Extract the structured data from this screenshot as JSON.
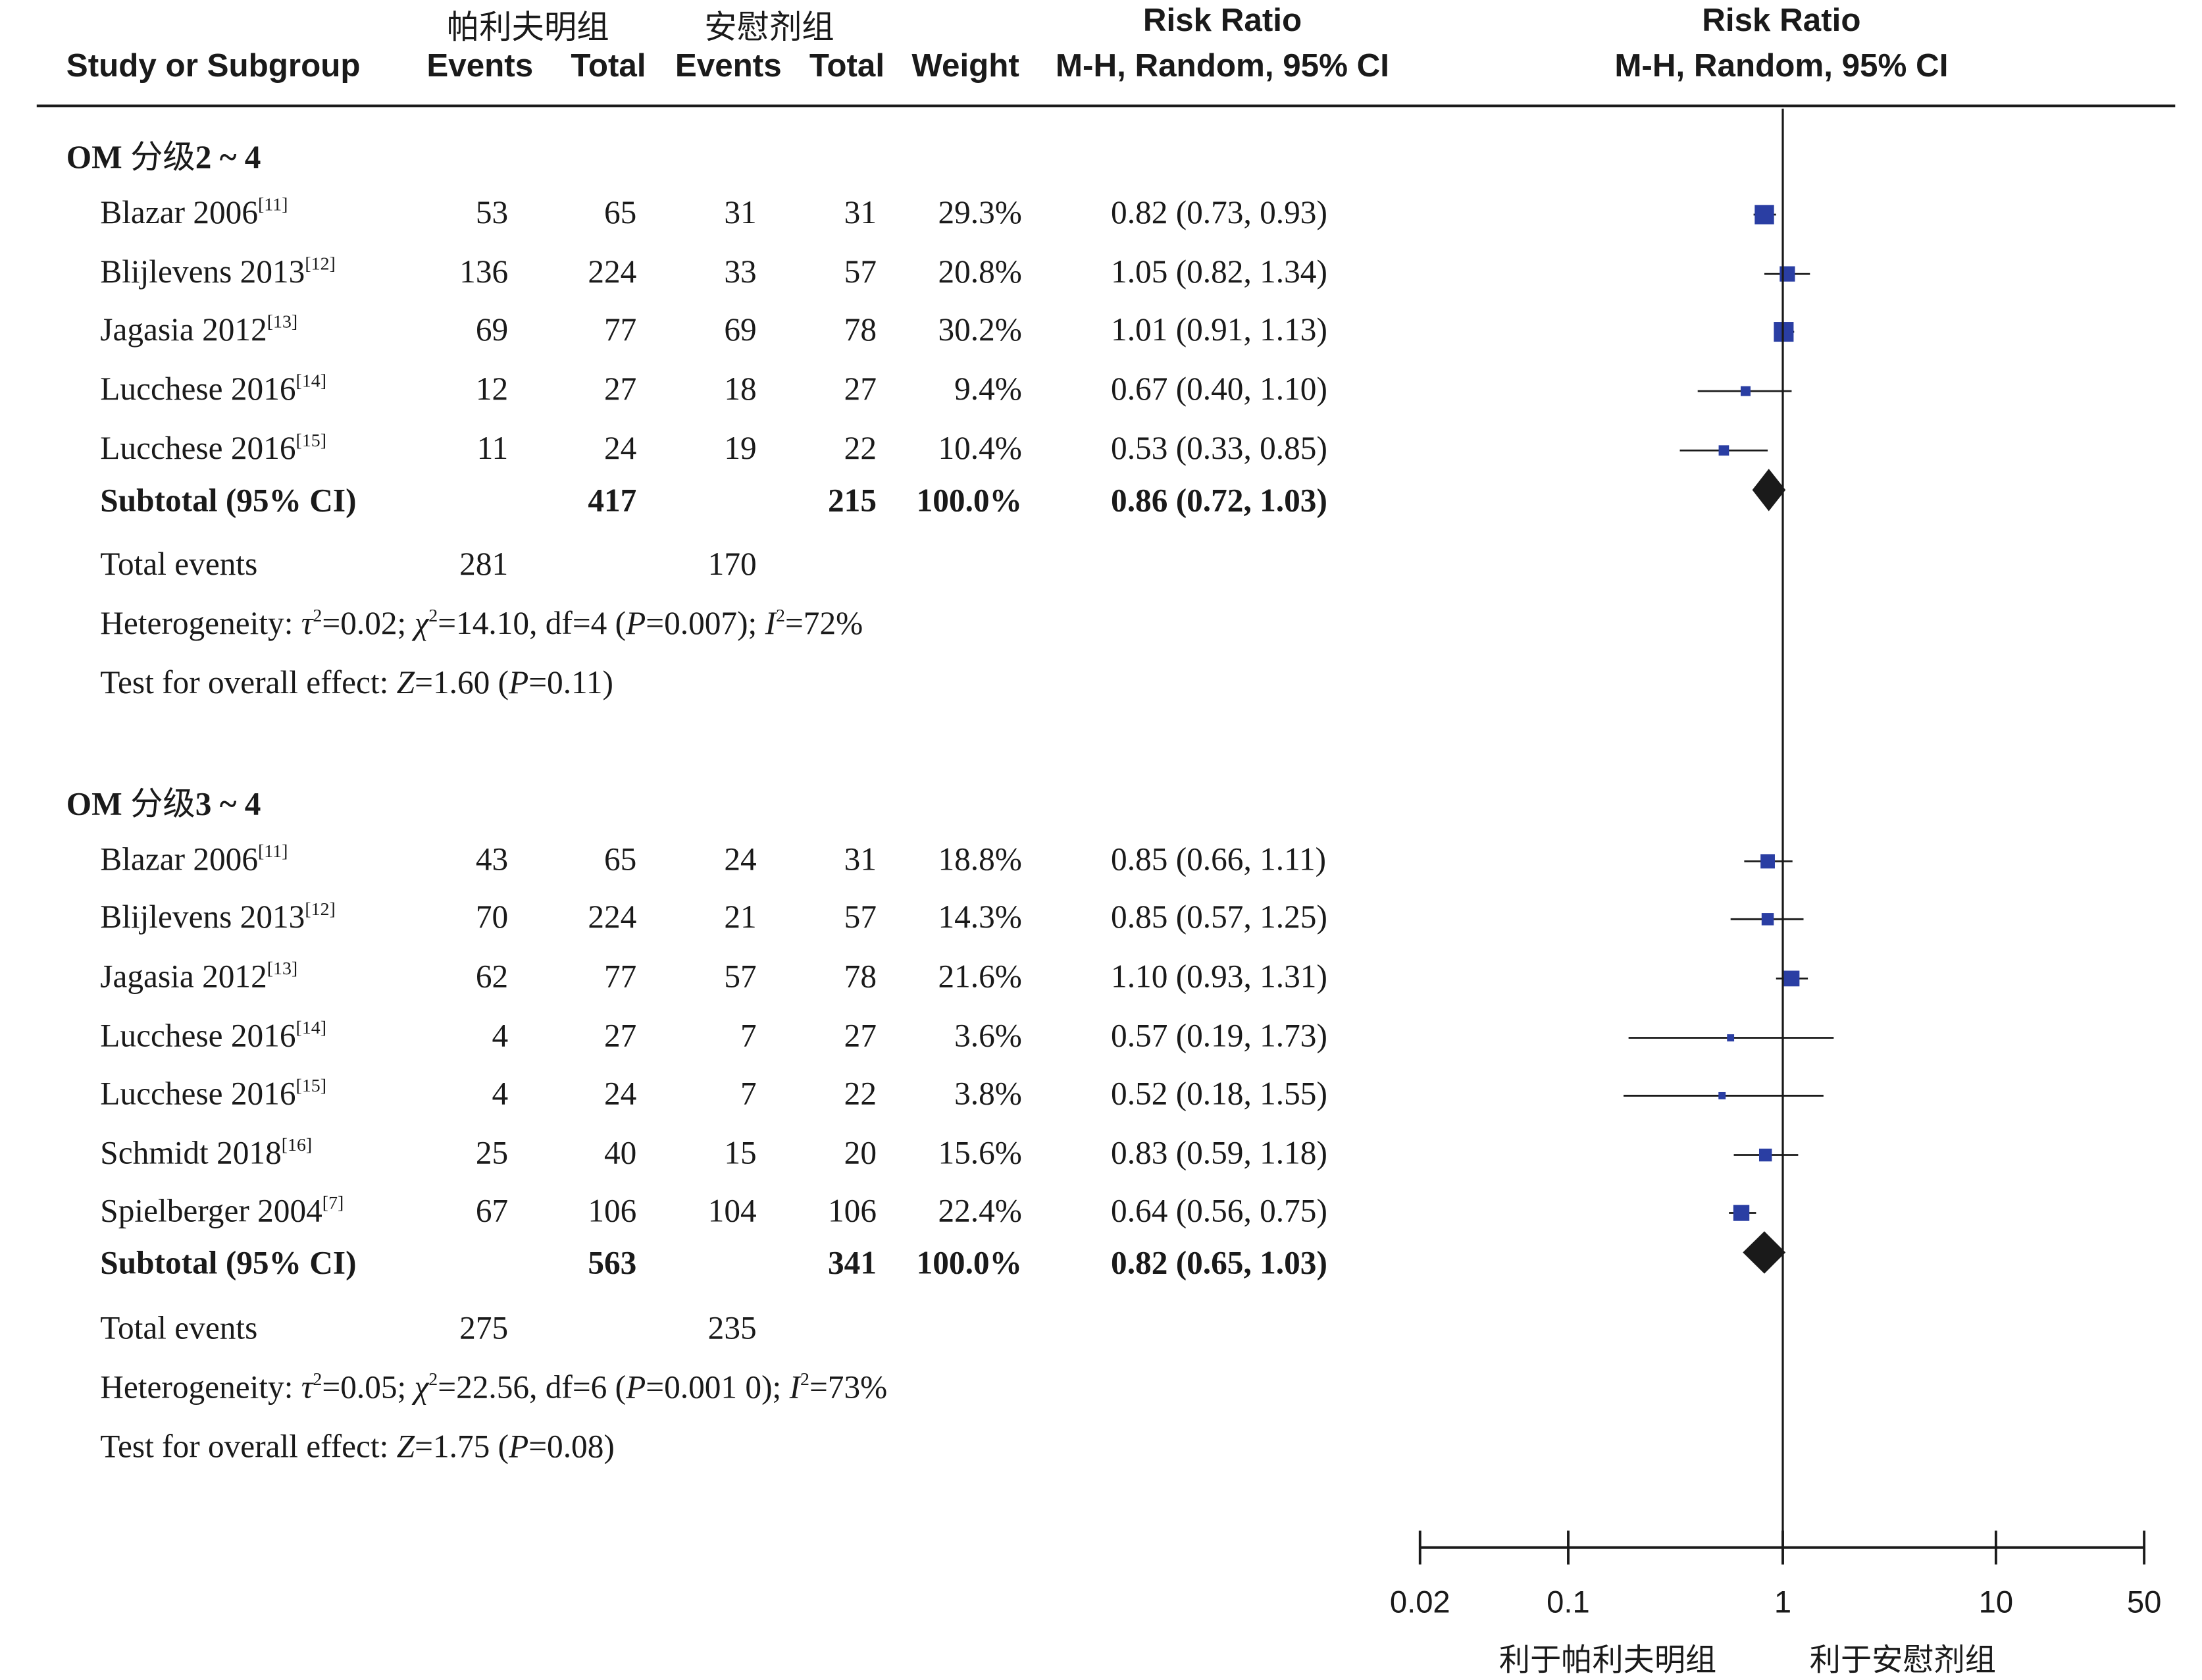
{
  "headers": {
    "study": "Study or Subgroup",
    "treatment_group": "帕利夫明组",
    "control_group": "安慰剂组",
    "events": "Events",
    "total": "Total",
    "weight": "Weight",
    "rr": "Risk Ratio",
    "method": "M-H, Random, 95% CI"
  },
  "chart_data": {
    "type": "forest",
    "x_scale": "log",
    "x_ticks": [
      "0.02",
      "0.1",
      "1",
      "10",
      "50"
    ],
    "favors_left": "利于帕利夫明组",
    "favors_right": "利于安慰剂组",
    "marker_color": "#2a3ea3",
    "diamond_color": "#1a1a1a",
    "groups": [
      {
        "title_latin": "OM ",
        "title_cn": "分级",
        "title_range": "2 ~ 4",
        "studies": [
          {
            "name": "Blazar 2006",
            "ref": "[11]",
            "ev_t": "53",
            "tot_t": "65",
            "ev_c": "31",
            "tot_c": "31",
            "weight": "29.3%",
            "ci_text": "0.82 (0.73, 0.93)",
            "rr": 0.82,
            "lo": 0.73,
            "hi": 0.93,
            "w": 29.3
          },
          {
            "name": "Blijlevens 2013",
            "ref": "[12]",
            "ev_t": "136",
            "tot_t": "224",
            "ev_c": "33",
            "tot_c": "57",
            "weight": "20.8%",
            "ci_text": "1.05 (0.82, 1.34)",
            "rr": 1.05,
            "lo": 0.82,
            "hi": 1.34,
            "w": 20.8
          },
          {
            "name": "Jagasia 2012",
            "ref": "[13]",
            "ev_t": "69",
            "tot_t": "77",
            "ev_c": "69",
            "tot_c": "78",
            "weight": "30.2%",
            "ci_text": "1.01 (0.91, 1.13)",
            "rr": 1.01,
            "lo": 0.91,
            "hi": 1.13,
            "w": 30.2
          },
          {
            "name": "Lucchese 2016",
            "ref": "[14]",
            "ev_t": "12",
            "tot_t": "27",
            "ev_c": "18",
            "tot_c": "27",
            "weight": "9.4%",
            "ci_text": "0.67 (0.40, 1.10)",
            "rr": 0.67,
            "lo": 0.4,
            "hi": 1.1,
            "w": 9.4
          },
          {
            "name": "Lucchese 2016",
            "ref": "[15]",
            "ev_t": "11",
            "tot_t": "24",
            "ev_c": "19",
            "tot_c": "22",
            "weight": "10.4%",
            "ci_text": "0.53 (0.33, 0.85)",
            "rr": 0.53,
            "lo": 0.33,
            "hi": 0.85,
            "w": 10.4
          }
        ],
        "subtotal": {
          "label": "Subtotal (95% CI)",
          "tot_t": "417",
          "tot_c": "215",
          "weight": "100.0%",
          "ci_text": "0.86 (0.72, 1.03)",
          "rr": 0.86,
          "lo": 0.72,
          "hi": 1.03
        },
        "total_events": {
          "label": "Total events",
          "t": "281",
          "c": "170"
        },
        "heterogeneity": {
          "label": "Heterogeneity: ",
          "tau2": "=0.02; ",
          "chi2": "=14.10, df=4 (",
          "p": "=0.007); ",
          "i2": "=72%"
        },
        "overall": {
          "label": "Test for overall effect: ",
          "z": "=1.60 (",
          "p": "=0.11)"
        }
      },
      {
        "title_latin": "OM ",
        "title_cn": "分级",
        "title_range": "3 ~ 4",
        "studies": [
          {
            "name": "Blazar 2006",
            "ref": "[11]",
            "ev_t": "43",
            "tot_t": "65",
            "ev_c": "24",
            "tot_c": "31",
            "weight": "18.8%",
            "ci_text": "0.85 (0.66, 1.11)",
            "rr": 0.85,
            "lo": 0.66,
            "hi": 1.11,
            "w": 18.8
          },
          {
            "name": "Blijlevens 2013",
            "ref": "[12]",
            "ev_t": "70",
            "tot_t": "224",
            "ev_c": "21",
            "tot_c": "57",
            "weight": "14.3%",
            "ci_text": "0.85 (0.57, 1.25)",
            "rr": 0.85,
            "lo": 0.57,
            "hi": 1.25,
            "w": 14.3
          },
          {
            "name": "Jagasia 2012",
            "ref": "[13]",
            "ev_t": "62",
            "tot_t": "77",
            "ev_c": "57",
            "tot_c": "78",
            "weight": "21.6%",
            "ci_text": "1.10 (0.93, 1.31)",
            "rr": 1.1,
            "lo": 0.93,
            "hi": 1.31,
            "w": 21.6
          },
          {
            "name": "Lucchese 2016",
            "ref": "[14]",
            "ev_t": "4",
            "tot_t": "27",
            "ev_c": "7",
            "tot_c": "27",
            "weight": "3.6%",
            "ci_text": "0.57 (0.19, 1.73)",
            "rr": 0.57,
            "lo": 0.19,
            "hi": 1.73,
            "w": 3.6
          },
          {
            "name": "Lucchese 2016",
            "ref": "[15]",
            "ev_t": "4",
            "tot_t": "24",
            "ev_c": "7",
            "tot_c": "22",
            "weight": "3.8%",
            "ci_text": "0.52 (0.18, 1.55)",
            "rr": 0.52,
            "lo": 0.18,
            "hi": 1.55,
            "w": 3.8
          },
          {
            "name": "Schmidt 2018",
            "ref": "[16]",
            "ev_t": "25",
            "tot_t": "40",
            "ev_c": "15",
            "tot_c": "20",
            "weight": "15.6%",
            "ci_text": "0.83 (0.59, 1.18)",
            "rr": 0.83,
            "lo": 0.59,
            "hi": 1.18,
            "w": 15.6
          },
          {
            "name": "Spielberger 2004",
            "ref": "[7]",
            "ev_t": "67",
            "tot_t": "106",
            "ev_c": "104",
            "tot_c": "106",
            "weight": "22.4%",
            "ci_text": "0.64 (0.56, 0.75)",
            "rr": 0.64,
            "lo": 0.56,
            "hi": 0.75,
            "w": 22.4
          }
        ],
        "subtotal": {
          "label": "Subtotal (95% CI)",
          "tot_t": "563",
          "tot_c": "341",
          "weight": "100.0%",
          "ci_text": "0.82 (0.65, 1.03)",
          "rr": 0.82,
          "lo": 0.65,
          "hi": 1.03
        },
        "total_events": {
          "label": "Total events",
          "t": "275",
          "c": "235"
        },
        "heterogeneity": {
          "label": "Heterogeneity: ",
          "tau2": "=0.05; ",
          "chi2": "=22.56, df=6 (",
          "p": "=0.001 0); ",
          "i2": "=73%"
        },
        "overall": {
          "label": "Test for overall effect: ",
          "z": "=1.75 (",
          "p": "=0.08)"
        }
      }
    ]
  }
}
